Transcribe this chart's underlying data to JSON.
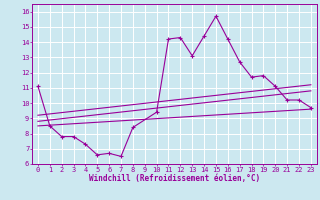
{
  "xlabel": "Windchill (Refroidissement éolien,°C)",
  "ylabel": "",
  "background_color": "#cce8f0",
  "grid_color": "#ffffff",
  "line_color": "#990099",
  "xlim": [
    -0.5,
    23.5
  ],
  "ylim": [
    6,
    16.5
  ],
  "xticks": [
    0,
    1,
    2,
    3,
    4,
    5,
    6,
    7,
    8,
    9,
    10,
    11,
    12,
    13,
    14,
    15,
    16,
    17,
    18,
    19,
    20,
    21,
    22,
    23
  ],
  "yticks": [
    6,
    7,
    8,
    9,
    10,
    11,
    12,
    13,
    14,
    15,
    16
  ],
  "series1_x": [
    0,
    1,
    2,
    3,
    4,
    5,
    6,
    7,
    8,
    10,
    11,
    12,
    13,
    14,
    15,
    16,
    17,
    18,
    19,
    20,
    21,
    22,
    23
  ],
  "series1_y": [
    11.1,
    8.5,
    7.8,
    7.8,
    7.3,
    6.6,
    6.7,
    6.5,
    8.4,
    9.4,
    14.2,
    14.3,
    13.1,
    14.4,
    15.7,
    14.2,
    12.7,
    11.7,
    11.8,
    11.1,
    10.2,
    10.2,
    9.7
  ],
  "series2_x": [
    0,
    23
  ],
  "series2_y": [
    8.5,
    9.6
  ],
  "series3_x": [
    0,
    23
  ],
  "series3_y": [
    8.8,
    10.8
  ],
  "series4_x": [
    0,
    23
  ],
  "series4_y": [
    9.2,
    11.2
  ],
  "label_fontsize": 5.5,
  "tick_fontsize": 5.0
}
